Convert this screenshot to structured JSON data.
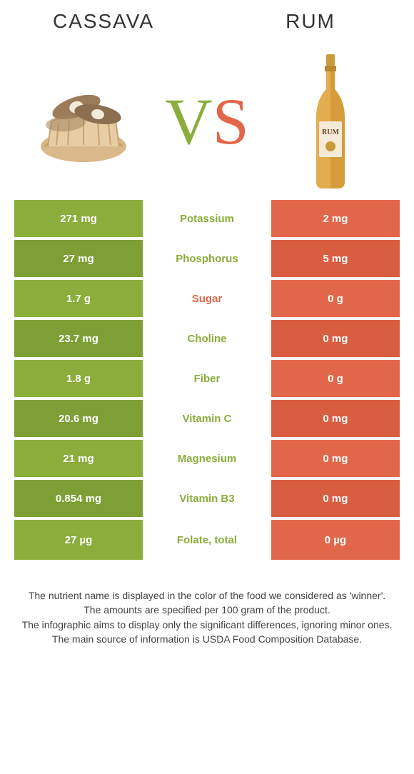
{
  "colors": {
    "left": "#8aad3b",
    "right": "#e2674a",
    "left_dark": "#7e9f36",
    "right_dark": "#d95d40",
    "white": "#ffffff",
    "text_dark": "#333333",
    "nutrient_font_size": 15
  },
  "header": {
    "left_title": "CASSAVA",
    "right_title": "RUM"
  },
  "vs": {
    "v": "V",
    "s": "S"
  },
  "rows": [
    {
      "left": "271 mg",
      "mid": "Potassium",
      "right": "2 mg",
      "winner": "left"
    },
    {
      "left": "27 mg",
      "mid": "Phosphorus",
      "right": "5 mg",
      "winner": "left"
    },
    {
      "left": "1.7 g",
      "mid": "Sugar",
      "right": "0 g",
      "winner": "right"
    },
    {
      "left": "23.7 mg",
      "mid": "Choline",
      "right": "0 mg",
      "winner": "left"
    },
    {
      "left": "1.8 g",
      "mid": "Fiber",
      "right": "0 g",
      "winner": "left"
    },
    {
      "left": "20.6 mg",
      "mid": "Vitamin C",
      "right": "0 mg",
      "winner": "left"
    },
    {
      "left": "21 mg",
      "mid": "Magnesium",
      "right": "0 mg",
      "winner": "left"
    },
    {
      "left": "0.854 mg",
      "mid": "Vitamin B3",
      "right": "0 mg",
      "winner": "left"
    },
    {
      "left": "27 µg",
      "mid": "Folate, total",
      "right": "0 µg",
      "winner": "left"
    }
  ],
  "footer": {
    "l1": "The nutrient name is displayed in the color of the food we considered as 'winner'.",
    "l2": "The amounts are specified per 100 gram of the product.",
    "l3": "The infographic aims to display only the significant differences, ignoring minor ones.",
    "l4": "The main source of information is USDA Food Composition Database."
  }
}
